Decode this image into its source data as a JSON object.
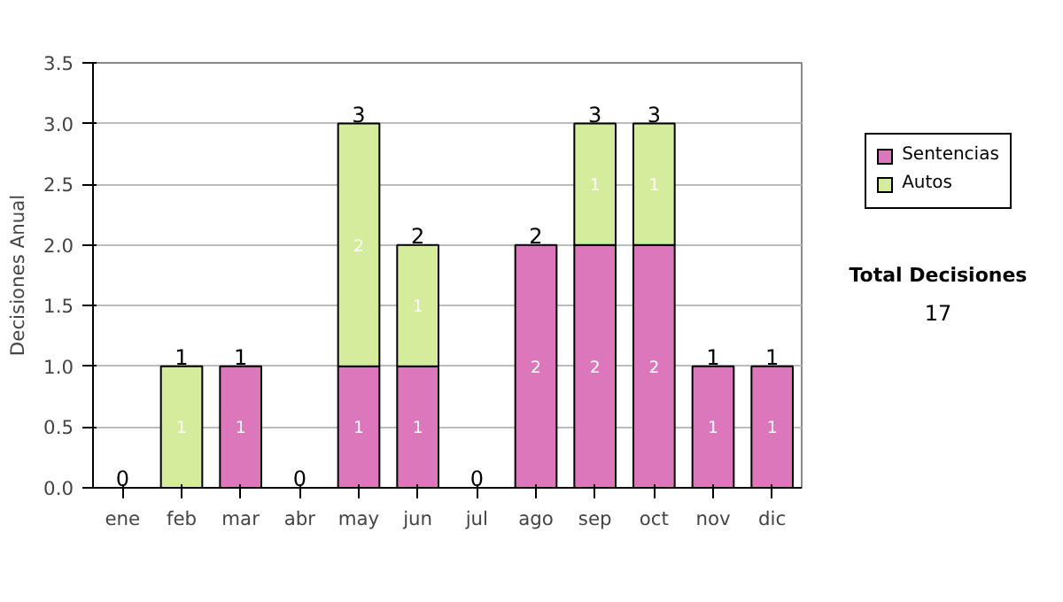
{
  "chart_data": {
    "type": "bar",
    "stacked": true,
    "ylabel": "Decisiones Anual",
    "categories": [
      "ene",
      "feb",
      "mar",
      "abr",
      "may",
      "jun",
      "jul",
      "ago",
      "sep",
      "oct",
      "nov",
      "dic"
    ],
    "series": [
      {
        "name": "Sentencias",
        "color": "#dd77bb",
        "values": [
          0,
          0,
          1,
          0,
          1,
          1,
          0,
          2,
          2,
          2,
          1,
          1
        ],
        "value_labels": [
          null,
          null,
          "1",
          null,
          "1",
          "1",
          null,
          "2",
          "2",
          "2",
          "1",
          "1"
        ]
      },
      {
        "name": "Autos",
        "color": "#d4ec9c",
        "values": [
          0,
          1,
          0,
          0,
          2,
          1,
          0,
          0,
          1,
          1,
          0,
          0
        ],
        "value_labels": [
          null,
          "1",
          null,
          null,
          "2",
          "1",
          null,
          null,
          "1",
          "1",
          null,
          null
        ]
      }
    ],
    "ylim": [
      0,
      3.5
    ],
    "yticks": [
      {
        "value": 0,
        "label": "0.0"
      },
      {
        "value": 0.5,
        "label": "0.5"
      },
      {
        "value": 1,
        "label": "1.0"
      },
      {
        "value": 1.5,
        "label": "1.5"
      },
      {
        "value": 2,
        "label": "2.0"
      },
      {
        "value": 2.5,
        "label": "2.5"
      },
      {
        "value": 3,
        "label": "3.0"
      },
      {
        "value": 3.5,
        "label": "3.5"
      }
    ],
    "grid": "y",
    "legend": "right",
    "totals": [
      "0",
      "1",
      "1",
      "0",
      "3",
      "2",
      "0",
      "2",
      "3",
      "3",
      "1",
      "1"
    ],
    "annotations": [
      "Total Decisiones",
      "17"
    ]
  }
}
